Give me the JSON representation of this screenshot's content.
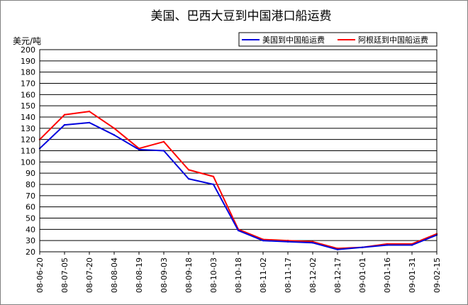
{
  "chart_data": {
    "type": "line",
    "title": "美国、巴西大豆到中国港口船运费",
    "ylabel": "美元/吨",
    "xlabel": "",
    "ylim": [
      20,
      200
    ],
    "yticks": [
      20,
      30,
      40,
      50,
      60,
      70,
      80,
      90,
      100,
      110,
      120,
      130,
      140,
      150,
      160,
      170,
      180,
      190,
      200
    ],
    "x": [
      "08-06-20",
      "08-07-05",
      "08-07-20",
      "08-08-04",
      "08-08-19",
      "08-09-03",
      "08-09-18",
      "08-10-03",
      "08-10-18",
      "08-11-02",
      "08-11-17",
      "08-12-02",
      "08-12-17",
      "09-01-01",
      "09-01-16",
      "09-01-31",
      "09-02-15"
    ],
    "grid": true,
    "legend_position": "top-right",
    "series": [
      {
        "name": "美国到中国船运费",
        "color": "#0000dd",
        "values": [
          112,
          133,
          135,
          124,
          111,
          110,
          85,
          80,
          39,
          30,
          29,
          28,
          22,
          24,
          26,
          26,
          35
        ]
      },
      {
        "name": "阿根廷到中国船运费",
        "color": "#ff0000",
        "values": [
          120,
          142,
          145,
          130,
          112,
          118,
          93,
          87,
          40,
          31,
          30,
          29,
          23,
          24,
          27,
          27,
          36
        ]
      }
    ]
  }
}
